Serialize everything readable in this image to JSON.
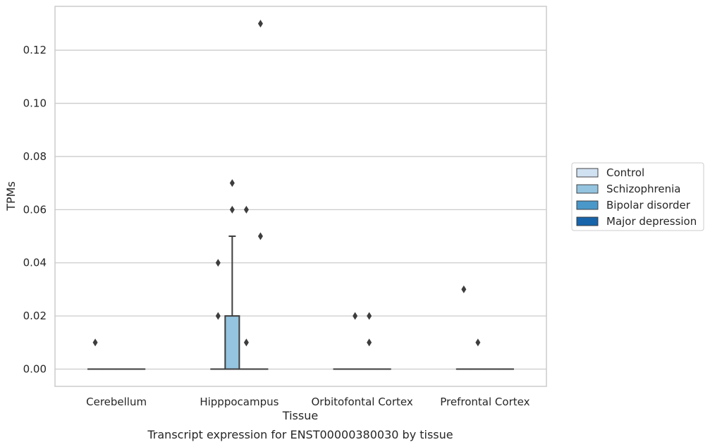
{
  "chart_data": {
    "type": "box",
    "title": "Transcript expression for ENST00000380030 by tissue",
    "xlabel": "Tissue",
    "ylabel": "TPMs",
    "ylim": [
      -0.0065,
      0.1365
    ],
    "yticks": [
      "0.00",
      "0.02",
      "0.04",
      "0.06",
      "0.08",
      "0.10",
      "0.12"
    ],
    "grid": true,
    "legend_position": "right",
    "categories": [
      "Cerebellum",
      "Hipppocampus",
      "Orbitofontal Cortex",
      "Prefrontal Cortex"
    ],
    "series": [
      {
        "name": "Control",
        "color": "#d0e1f2"
      },
      {
        "name": "Schizophrenia",
        "color": "#94c4df"
      },
      {
        "name": "Bipolar disorder",
        "color": "#4a98c9"
      },
      {
        "name": "Major depression",
        "color": "#1764ab"
      }
    ],
    "boxes": [
      {
        "category": "Cerebellum",
        "series": "Control",
        "q1": 0,
        "median": 0,
        "q3": 0,
        "whisker_low": 0,
        "whisker_high": 0,
        "outliers": [
          0.01
        ]
      },
      {
        "category": "Cerebellum",
        "series": "Schizophrenia",
        "q1": 0,
        "median": 0,
        "q3": 0,
        "whisker_low": 0,
        "whisker_high": 0,
        "outliers": []
      },
      {
        "category": "Cerebellum",
        "series": "Bipolar disorder",
        "q1": 0,
        "median": 0,
        "q3": 0,
        "whisker_low": 0,
        "whisker_high": 0,
        "outliers": []
      },
      {
        "category": "Cerebellum",
        "series": "Major depression",
        "q1": 0,
        "median": 0,
        "q3": 0,
        "whisker_low": 0,
        "whisker_high": 0,
        "outliers": []
      },
      {
        "category": "Hipppocampus",
        "series": "Control",
        "q1": 0,
        "median": 0,
        "q3": 0,
        "whisker_low": 0,
        "whisker_high": 0,
        "outliers": [
          0.02,
          0.04
        ]
      },
      {
        "category": "Hipppocampus",
        "series": "Schizophrenia",
        "q1": 0,
        "median": 0,
        "q3": 0.02,
        "whisker_low": 0,
        "whisker_high": 0.05,
        "outliers": [
          0.06,
          0.07
        ]
      },
      {
        "category": "Hipppocampus",
        "series": "Bipolar disorder",
        "q1": 0,
        "median": 0,
        "q3": 0,
        "whisker_low": 0,
        "whisker_high": 0,
        "outliers": [
          0.01,
          0.06
        ]
      },
      {
        "category": "Hipppocampus",
        "series": "Major depression",
        "q1": 0,
        "median": 0,
        "q3": 0,
        "whisker_low": 0,
        "whisker_high": 0,
        "outliers": [
          0.05,
          0.13
        ]
      },
      {
        "category": "Orbitofontal Cortex",
        "series": "Control",
        "q1": 0,
        "median": 0,
        "q3": 0,
        "whisker_low": 0,
        "whisker_high": 0,
        "outliers": []
      },
      {
        "category": "Orbitofontal Cortex",
        "series": "Schizophrenia",
        "q1": 0,
        "median": 0,
        "q3": 0,
        "whisker_low": 0,
        "whisker_high": 0,
        "outliers": [
          0.02
        ]
      },
      {
        "category": "Orbitofontal Cortex",
        "series": "Bipolar disorder",
        "q1": 0,
        "median": 0,
        "q3": 0,
        "whisker_low": 0,
        "whisker_high": 0,
        "outliers": [
          0.01,
          0.02
        ]
      },
      {
        "category": "Orbitofontal Cortex",
        "series": "Major depression",
        "q1": 0,
        "median": 0,
        "q3": 0,
        "whisker_low": 0,
        "whisker_high": 0,
        "outliers": []
      },
      {
        "category": "Prefrontal Cortex",
        "series": "Control",
        "q1": 0,
        "median": 0,
        "q3": 0,
        "whisker_low": 0,
        "whisker_high": 0,
        "outliers": [
          0.03
        ]
      },
      {
        "category": "Prefrontal Cortex",
        "series": "Schizophrenia",
        "q1": 0,
        "median": 0,
        "q3": 0,
        "whisker_low": 0,
        "whisker_high": 0,
        "outliers": [
          0.01
        ]
      },
      {
        "category": "Prefrontal Cortex",
        "series": "Bipolar disorder",
        "q1": 0,
        "median": 0,
        "q3": 0,
        "whisker_low": 0,
        "whisker_high": 0,
        "outliers": []
      },
      {
        "category": "Prefrontal Cortex",
        "series": "Major depression",
        "q1": 0,
        "median": 0,
        "q3": 0,
        "whisker_low": 0,
        "whisker_high": 0,
        "outliers": []
      }
    ]
  },
  "colors": {
    "grid": "#cccccc",
    "frame": "#cccccc",
    "box_edge": "#3d3d3d",
    "text": "#262626"
  }
}
